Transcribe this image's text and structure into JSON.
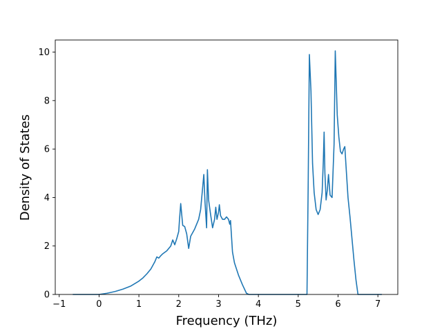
{
  "chart_data": {
    "type": "line",
    "title": "",
    "xlabel": "Frequency (THz)",
    "ylabel": "Density of States",
    "xlim": [
      -1.1,
      7.5
    ],
    "ylim": [
      0,
      10.5
    ],
    "xticks": [
      -1,
      0,
      1,
      2,
      3,
      4,
      5,
      6,
      7
    ],
    "yticks": [
      0,
      2,
      4,
      6,
      8,
      10
    ],
    "grid": false,
    "legend": "none",
    "line_color": "#1f77b4",
    "series": [
      {
        "x": [
          -0.66,
          -0.3,
          0,
          0.2,
          0.4,
          0.6,
          0.8,
          1.0,
          1.1,
          1.2,
          1.3,
          1.4,
          1.45,
          1.5,
          1.55,
          1.6,
          1.7,
          1.8,
          1.85,
          1.9,
          1.95,
          2.0,
          2.02,
          2.05,
          2.1,
          2.15,
          2.2,
          2.25,
          2.3,
          2.4,
          2.5,
          2.55,
          2.6,
          2.63,
          2.66,
          2.7,
          2.72,
          2.75,
          2.8,
          2.85,
          2.9,
          2.93,
          2.96,
          3.0,
          3.02,
          3.05,
          3.1,
          3.15,
          3.2,
          3.25,
          3.28,
          3.3,
          3.35,
          3.4,
          3.5,
          3.6,
          3.7,
          3.76,
          4.0,
          4.5,
          5.0,
          5.22,
          5.25,
          5.28,
          5.32,
          5.36,
          5.4,
          5.45,
          5.5,
          5.55,
          5.6,
          5.63,
          5.65,
          5.67,
          5.7,
          5.73,
          5.76,
          5.8,
          5.85,
          5.9,
          5.93,
          5.95,
          5.98,
          6.02,
          6.06,
          6.1,
          6.14,
          6.17,
          6.2,
          6.25,
          6.3,
          6.35,
          6.4,
          6.45,
          6.5,
          6.8,
          7.1
        ],
        "y": [
          0,
          0,
          0,
          0.05,
          0.12,
          0.22,
          0.35,
          0.55,
          0.68,
          0.85,
          1.05,
          1.35,
          1.55,
          1.5,
          1.6,
          1.68,
          1.8,
          2.0,
          2.25,
          2.05,
          2.3,
          2.6,
          3.1,
          3.75,
          2.85,
          2.8,
          2.5,
          1.9,
          2.4,
          2.7,
          3.1,
          3.5,
          4.4,
          4.95,
          3.8,
          2.75,
          5.15,
          3.9,
          3.3,
          2.75,
          3.1,
          3.6,
          3.1,
          3.4,
          3.7,
          3.25,
          3.1,
          3.1,
          3.2,
          3.1,
          2.9,
          3.05,
          1.75,
          1.3,
          0.8,
          0.4,
          0.05,
          0,
          0,
          0,
          0,
          0,
          4.5,
          9.9,
          8.4,
          5.4,
          4.2,
          3.5,
          3.3,
          3.5,
          4.2,
          5.5,
          6.7,
          5.0,
          3.9,
          4.3,
          4.95,
          4.1,
          4.0,
          6.2,
          10.05,
          9.0,
          7.4,
          6.5,
          5.9,
          5.8,
          6.0,
          6.1,
          5.3,
          4.0,
          3.2,
          2.3,
          1.4,
          0.6,
          0,
          0,
          0
        ]
      }
    ]
  }
}
